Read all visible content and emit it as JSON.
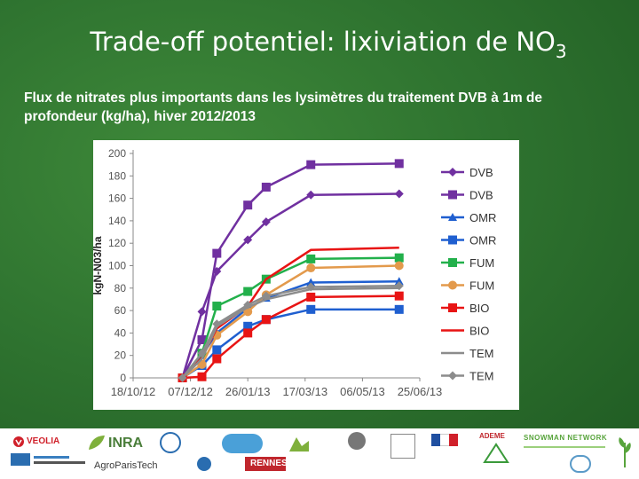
{
  "slide": {
    "title_main": "Trade-off potentiel: lixiviation de NO",
    "title_sub": "3",
    "subtitle": "Flux de nitrates plus importants dans les lysimètres du traitement DVB à 1m de profondeur (kg/ha), hiver 2012/2013"
  },
  "chart_data": {
    "type": "line",
    "title": "",
    "xlabel": "",
    "ylabel": "kgN-N03/ha",
    "ylim": [
      0,
      200
    ],
    "yticks": [
      0,
      20,
      40,
      60,
      80,
      100,
      120,
      140,
      160,
      180,
      200
    ],
    "xticks": [
      "18/10/12",
      "07/12/12",
      "26/01/13",
      "17/03/13",
      "06/05/13",
      "25/06/13"
    ],
    "xlim": [
      "2012-10-18",
      "2013-06-25"
    ],
    "legend_position": "right",
    "grid": false,
    "series": [
      {
        "name": "DVB",
        "color": "#7030a0",
        "marker": "diamond",
        "x": [
          "2012-11-30",
          "2012-12-17",
          "2012-12-30",
          "2013-01-26",
          "2013-02-11",
          "2013-03-22",
          "2013-06-07"
        ],
        "values": [
          0,
          59,
          95,
          123,
          139,
          163,
          164
        ]
      },
      {
        "name": "DVB",
        "color": "#7030a0",
        "marker": "square",
        "x": [
          "2012-11-30",
          "2012-12-17",
          "2012-12-30",
          "2013-01-26",
          "2013-02-11",
          "2013-03-22",
          "2013-06-07"
        ],
        "values": [
          0,
          34,
          111,
          154,
          170,
          190,
          191
        ]
      },
      {
        "name": "OMR",
        "color": "#1f5fd0",
        "marker": "triangle",
        "x": [
          "2012-11-30",
          "2012-12-17",
          "2012-12-30",
          "2013-01-26",
          "2013-02-11",
          "2013-03-22",
          "2013-06-07"
        ],
        "values": [
          0,
          20,
          40,
          62,
          71,
          85,
          86
        ]
      },
      {
        "name": "OMR",
        "color": "#1f5fd0",
        "marker": "square",
        "x": [
          "2012-11-30",
          "2012-12-17",
          "2012-12-30",
          "2013-01-26",
          "2013-02-11",
          "2013-03-22",
          "2013-06-07"
        ],
        "values": [
          0,
          11,
          25,
          46,
          52,
          61,
          61
        ]
      },
      {
        "name": "FUM",
        "color": "#22b04b",
        "marker": "square",
        "x": [
          "2012-11-30",
          "2012-12-17",
          "2012-12-30",
          "2013-01-26",
          "2013-02-11",
          "2013-03-22",
          "2013-06-07"
        ],
        "values": [
          0,
          22,
          64,
          77,
          88,
          106,
          107
        ]
      },
      {
        "name": "FUM",
        "color": "#e39a4c",
        "marker": "circle",
        "x": [
          "2012-11-30",
          "2012-12-17",
          "2012-12-30",
          "2013-01-26",
          "2013-02-11",
          "2013-03-22",
          "2013-06-07"
        ],
        "values": [
          0,
          12,
          38,
          59,
          74,
          98,
          100
        ]
      },
      {
        "name": "BIO",
        "color": "#e81414",
        "marker": "square",
        "x": [
          "2012-11-30",
          "2012-12-17",
          "2012-12-30",
          "2013-01-26",
          "2013-02-11",
          "2013-03-22",
          "2013-06-07"
        ],
        "values": [
          0,
          1,
          17,
          40,
          52,
          72,
          73
        ]
      },
      {
        "name": "BIO",
        "color": "#e81414",
        "marker": "none",
        "x": [
          "2012-11-30",
          "2012-12-17",
          "2012-12-30",
          "2013-01-26",
          "2013-02-11",
          "2013-03-22",
          "2013-06-07"
        ],
        "values": [
          0,
          18,
          44,
          64,
          88,
          114,
          116
        ]
      },
      {
        "name": "TEM",
        "color": "#8c8c8c",
        "marker": "none",
        "x": [
          "2012-11-30",
          "2012-12-17",
          "2012-12-30",
          "2013-01-26",
          "2013-02-11",
          "2013-03-22",
          "2013-06-07"
        ],
        "values": [
          0,
          17,
          46,
          63,
          70,
          79,
          80
        ]
      },
      {
        "name": "TEM",
        "color": "#8c8c8c",
        "marker": "diamond",
        "x": [
          "2012-11-30",
          "2012-12-17",
          "2012-12-30",
          "2013-01-26",
          "2013-02-11",
          "2013-03-22",
          "2013-06-07"
        ],
        "values": [
          0,
          22,
          48,
          65,
          73,
          81,
          82
        ]
      }
    ]
  },
  "footer": {
    "logos": [
      {
        "name": "veolia",
        "text": "VEOLIA",
        "color": "#d0202a"
      },
      {
        "name": "inra",
        "text": "INRA",
        "color": "#4a7e3a"
      },
      {
        "name": "agroparistech",
        "text": "AgroParisTech",
        "color": "#3a3a3a"
      },
      {
        "name": "rennes",
        "text": "RENNES",
        "color": "#ffffff"
      },
      {
        "name": "ademe",
        "text": "ADEME",
        "color": "#c0272d"
      },
      {
        "name": "snowman-network",
        "text": "SNOWMAN NETWORK",
        "color": "#58a43c"
      }
    ]
  }
}
